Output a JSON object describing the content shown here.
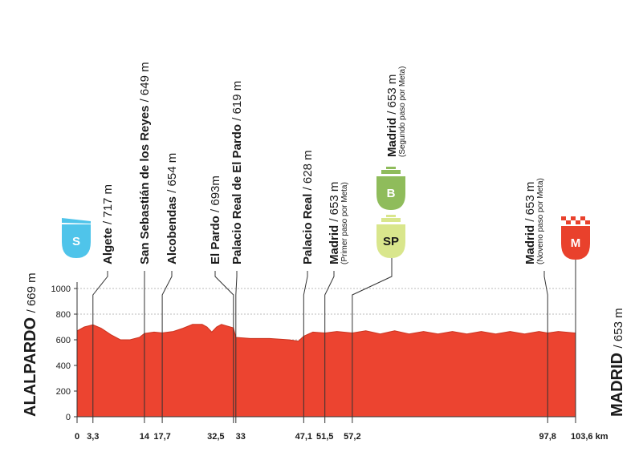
{
  "chart_data": {
    "type": "area",
    "color": "#ec4430",
    "start": {
      "name": "ALALPARDO",
      "label": "/ 669 m"
    },
    "finish": {
      "name": "MADRID",
      "label": "/ 653 m"
    },
    "x": [
      0,
      1.5,
      3.3,
      5,
      7,
      9,
      11,
      13,
      14,
      16,
      17.7,
      20,
      22,
      24,
      26,
      27,
      28,
      29,
      30,
      32.5,
      33,
      36,
      40,
      44,
      46,
      47.1,
      49,
      51.5,
      54,
      57.2,
      60,
      63,
      66,
      69,
      72,
      75,
      78,
      81,
      84,
      87,
      90,
      93,
      96,
      97.8,
      100,
      103.6
    ],
    "values": [
      669,
      700,
      717,
      690,
      640,
      600,
      600,
      620,
      649,
      660,
      654,
      665,
      690,
      720,
      720,
      700,
      660,
      700,
      720,
      693,
      619,
      610,
      610,
      600,
      590,
      628,
      660,
      653,
      665,
      653,
      670,
      645,
      670,
      645,
      665,
      645,
      665,
      645,
      665,
      645,
      665,
      645,
      665,
      653,
      665,
      653
    ],
    "xlim": [
      0,
      103.6
    ],
    "ylim": [
      0,
      1000
    ],
    "yticks": [
      0,
      200,
      400,
      600,
      800,
      1000
    ],
    "xticks": [
      0,
      {
        "value": 3.3,
        "label": "3,3"
      },
      14,
      {
        "value": 17.7,
        "label": "17,7"
      },
      {
        "value": 32.5,
        "label": "32,5"
      },
      33,
      {
        "value": 47.1,
        "label": "47,1"
      },
      {
        "value": 51.5,
        "label": "51,5"
      },
      {
        "value": 57.2,
        "label": "57,2"
      },
      {
        "value": 97.8,
        "label": "97,8"
      },
      {
        "value": 103.6,
        "label": "103,6 km"
      }
    ],
    "grid": true,
    "annotations": [
      {
        "name": "Algete",
        "label": "/ 717 m",
        "x": 3.3
      },
      {
        "name": "San Sebastián de los Reyes",
        "label": "/ 649 m",
        "x": 14
      },
      {
        "name": "Alcobendas",
        "label": "/ 654 m",
        "x": 17.7
      },
      {
        "name": "El Pardo",
        "label": "/ 693m",
        "x": 32.5
      },
      {
        "name": "Palacio Real de El Pardo",
        "label": "/ 619 m",
        "x": 33
      },
      {
        "name": "Palacio Real",
        "label": "/ 628 m",
        "x": 47.1
      },
      {
        "name": "Madrid",
        "label": "/ 653 m",
        "note": "(Primer paso por Meta)",
        "x": 51.5
      },
      {
        "name": "Madrid",
        "label": "/ 653 m",
        "note": "(Segundo paso por Meta)",
        "x": 57.2
      },
      {
        "name": "Madrid",
        "label": "/ 653 m",
        "note": "(Noveno paso por Meta)",
        "x": 97.8
      }
    ],
    "icons": [
      {
        "label": "S",
        "color": "#4fc4ea"
      },
      {
        "label": "B",
        "color": "#8fbc5b"
      },
      {
        "label": "SP",
        "color": "#d9e68c"
      },
      {
        "label": "M",
        "color": "#e9412c"
      }
    ]
  }
}
